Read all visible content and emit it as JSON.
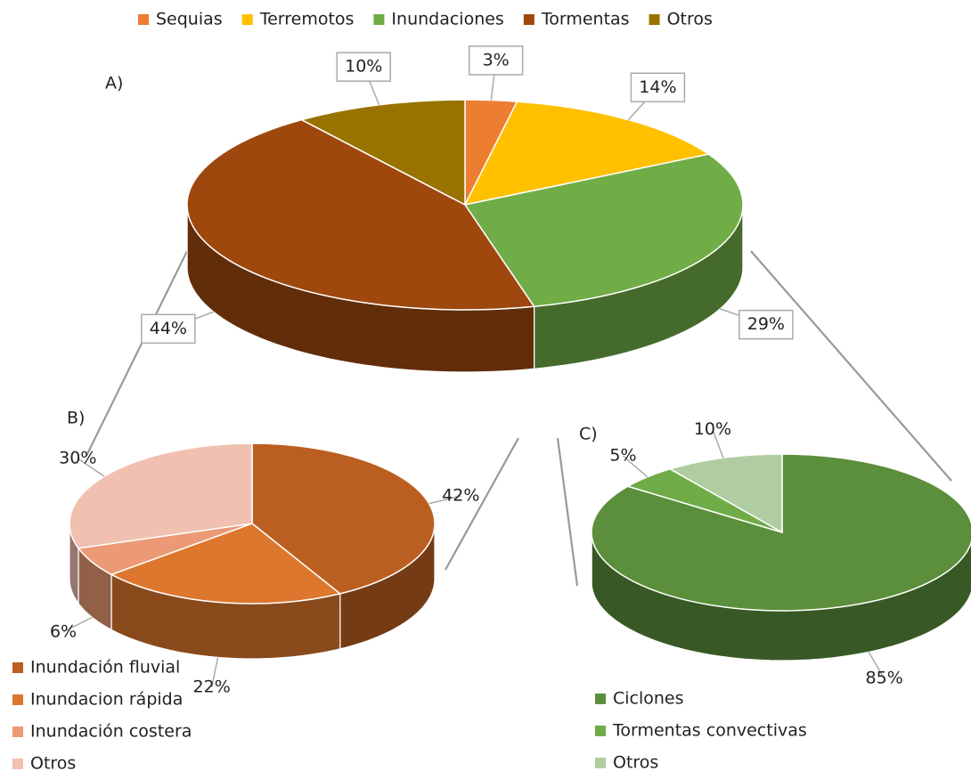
{
  "chart_data": [
    {
      "type": "pie3d",
      "title": "A)",
      "categories": [
        "Sequias",
        "Terremotos",
        "Inundaciones",
        "Tormentas",
        "Otros"
      ],
      "values": [
        3,
        14,
        29,
        44,
        10
      ],
      "value_labels": [
        "3%",
        "14%",
        "29%",
        "44%",
        "10%"
      ],
      "colors": [
        "#ed7d31",
        "#ffc000",
        "#70ad47",
        "#9e480e",
        "#997300"
      ],
      "legend": "top"
    },
    {
      "type": "pie3d",
      "title": "B)",
      "categories": [
        "Inundación fluvial",
        "Inundacion rápida",
        "Inundación costera",
        "Otros"
      ],
      "values": [
        42,
        22,
        6,
        30
      ],
      "value_labels": [
        "42%",
        "22%",
        "6%",
        "30%"
      ],
      "colors": [
        "#bb5f21",
        "#dd772d",
        "#ec9a76",
        "#f1c0b0"
      ],
      "legend": "bottom-left"
    },
    {
      "type": "pie3d",
      "title": "C)",
      "categories": [
        "Ciclones",
        "Tormentas convectivas",
        "Otros"
      ],
      "values": [
        85,
        5,
        10
      ],
      "value_labels": [
        "85%",
        "5%",
        "10%"
      ],
      "colors": [
        "#5b8f3b",
        "#6fab46",
        "#b0cda2"
      ],
      "legend": "bottom-left"
    }
  ]
}
